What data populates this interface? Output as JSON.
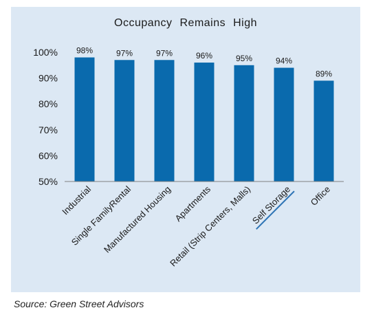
{
  "chart_data": {
    "type": "bar",
    "title": "Occupancy  Remains  High",
    "categories": [
      "Industrial",
      "Single FamilyRental",
      "Manufactured Housing",
      "Apartments",
      "Retail (Strip Centers, Malls)",
      "Self Storage",
      "Office"
    ],
    "values": [
      98,
      97,
      97,
      96,
      95,
      94,
      89
    ],
    "data_labels": [
      "98%",
      "97%",
      "97%",
      "96%",
      "95%",
      "94%",
      "89%"
    ],
    "ylim": [
      50,
      100
    ],
    "yticks": [
      50,
      60,
      70,
      80,
      90,
      100
    ],
    "ytick_labels": [
      "50%",
      "60%",
      "70%",
      "80%",
      "90%",
      "100%"
    ],
    "xlabel": "",
    "ylabel": "",
    "grid": false,
    "legend": "none",
    "colors": {
      "bar": "#0a6aad",
      "panel": "#dce8f4",
      "axis": "#7f7f7f",
      "link_underline": "#2e74b5"
    }
  },
  "source": "Source: Green Street Advisors"
}
